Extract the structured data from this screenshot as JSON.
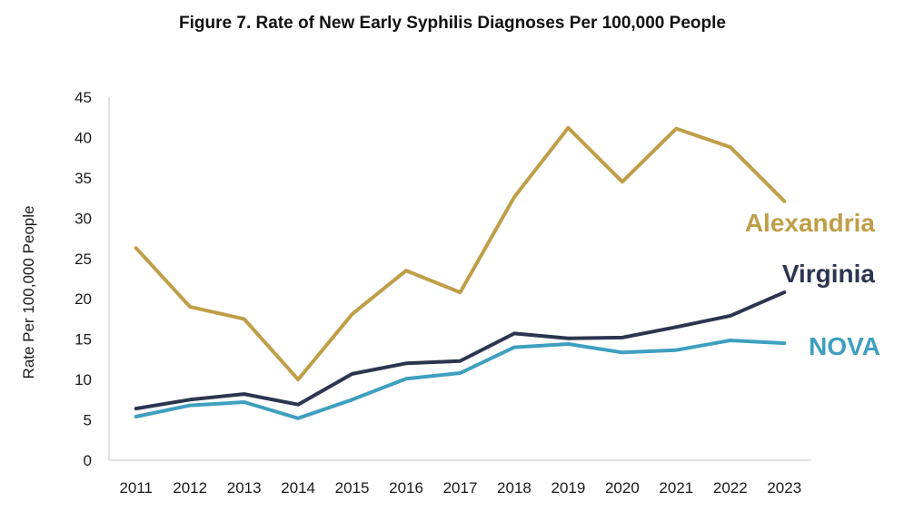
{
  "chart_data": {
    "type": "line",
    "title": "Figure 7. Rate of New Early Syphilis Diagnoses Per 100,000 People",
    "xlabel": "",
    "ylabel": "Rate Per 100,000 People",
    "ylim": [
      0,
      45
    ],
    "yticks": [
      0,
      5,
      10,
      15,
      20,
      25,
      30,
      35,
      40,
      45
    ],
    "grid": false,
    "legend": "inline-right",
    "categories": [
      "2011",
      "2012",
      "2013",
      "2014",
      "2015",
      "2016",
      "2017",
      "2018",
      "2019",
      "2020",
      "2021",
      "2022",
      "2023"
    ],
    "series": [
      {
        "name": "Alexandria",
        "color": "#bf9e47",
        "values": [
          26.3,
          19.0,
          17.5,
          10.0,
          18.1,
          23.5,
          20.8,
          32.6,
          41.2,
          34.5,
          41.1,
          38.8,
          32.1
        ]
      },
      {
        "name": "Virginia",
        "color": "#2c3550",
        "values": [
          6.4,
          7.5,
          8.2,
          6.9,
          10.7,
          12.0,
          12.3,
          15.7,
          15.1,
          15.2,
          16.5,
          17.9,
          20.8
        ]
      },
      {
        "name": "NOVA",
        "color": "#3e9fbf",
        "values": [
          5.4,
          6.8,
          7.2,
          5.2,
          7.5,
          10.1,
          10.8,
          14.0,
          14.4,
          13.35,
          13.65,
          14.85,
          14.5
        ]
      }
    ]
  }
}
